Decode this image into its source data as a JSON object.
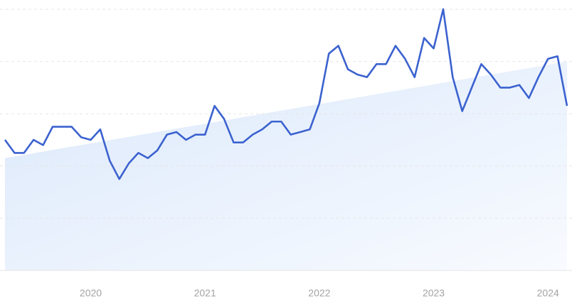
{
  "chart_data": {
    "type": "line",
    "categories": [
      null,
      null,
      null,
      null,
      null,
      null,
      null,
      null,
      null,
      "2020",
      null,
      null,
      null,
      null,
      null,
      null,
      null,
      null,
      null,
      null,
      null,
      "2021",
      null,
      null,
      null,
      null,
      null,
      null,
      null,
      null,
      null,
      null,
      null,
      "2022",
      null,
      null,
      null,
      null,
      null,
      null,
      null,
      null,
      null,
      null,
      null,
      "2023",
      null,
      null,
      null,
      null,
      null,
      null,
      null,
      null,
      null,
      null,
      null,
      "2024",
      null,
      null
    ],
    "values": [
      50,
      45,
      45,
      50,
      48,
      55,
      55,
      55,
      51,
      50,
      54,
      42,
      35,
      41,
      45,
      43,
      46,
      52,
      53,
      50,
      52,
      52,
      63,
      58,
      49,
      49,
      52,
      54,
      57,
      57,
      52,
      53,
      54,
      64,
      83,
      86,
      77,
      75,
      74,
      79,
      79,
      86,
      81,
      74,
      89,
      85,
      100,
      74,
      61,
      70,
      79,
      75,
      70,
      70,
      71,
      66,
      74,
      81,
      82,
      63
    ],
    "color": "#3b62cf",
    "trend": [
      43,
      80
    ],
    "ylim": [
      0,
      100
    ],
    "yticks": [
      0,
      20,
      40,
      60,
      80,
      100
    ],
    "grid": true
  }
}
